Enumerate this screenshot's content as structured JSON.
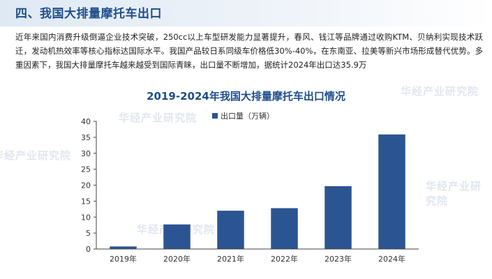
{
  "header": {
    "title": "四、我国大排量摩托车出口"
  },
  "paragraph": "近年来国内消费升级倒逼企业技术突破，250cc以上车型研发能力显著提升，春风、钱江等品牌通过收购KTM、贝纳利实现技术跃迁，发动机热效率等核心指标达国际水平。我国产品较日系同级车价格低30%-40%，在东南亚、拉美等新兴市场形成替代优势。多重因素下，我国大排量摩托车越来越受到国际青睐，出口量不断增加，据统计2024年出口达35.9万",
  "watermark": "华经产业研究院",
  "colors": {
    "bar": "#2b5592",
    "title": "#1f4e8a",
    "axis": "#444444"
  },
  "chart_data": {
    "type": "bar",
    "title": "2019-2024年我国大排量摩托车出口情况",
    "categories": [
      "2019年",
      "2020年",
      "2021年",
      "2022年",
      "2023年",
      "2024年"
    ],
    "series": [
      {
        "name": "出口量（万辆）",
        "values": [
          0.8,
          7.7,
          12.0,
          12.8,
          19.7,
          35.9
        ]
      }
    ],
    "ylim": [
      0,
      40
    ],
    "yticks": [
      0,
      5,
      10,
      15,
      20,
      25,
      30,
      35,
      40
    ],
    "legend_position": "top",
    "grid": false
  }
}
